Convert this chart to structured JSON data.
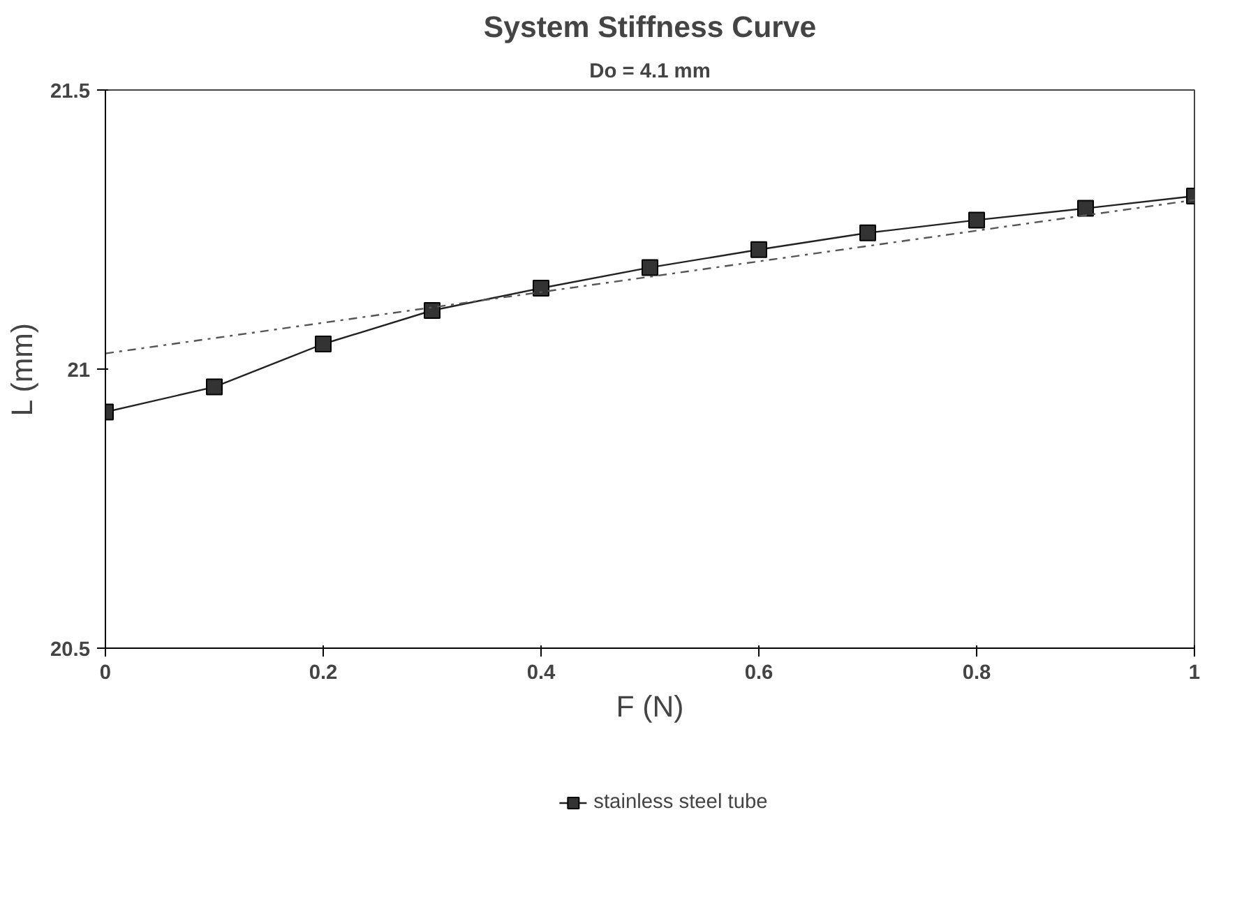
{
  "chart_data": {
    "type": "line",
    "title": "System Stiffness Curve",
    "subtitle": "Do = 4.1 mm",
    "xlabel": "F (N)",
    "ylabel": "L (mm)",
    "x": [
      0,
      0.1,
      0.2,
      0.3,
      0.4,
      0.5,
      0.6,
      0.7,
      0.8,
      0.9,
      1
    ],
    "series": [
      {
        "name": "stainless steel tube",
        "color": "#222222",
        "marker": "square",
        "line_style": "solid",
        "values": [
          20.923,
          20.968,
          21.045,
          21.105,
          21.145,
          21.182,
          21.214,
          21.244,
          21.267,
          21.288,
          21.31
        ]
      },
      {
        "color": "#555555",
        "marker": "none",
        "line_style": "dashed",
        "x": [
          0,
          1
        ],
        "values": [
          21.028,
          21.303
        ]
      }
    ],
    "xlim": [
      0,
      1
    ],
    "ylim": [
      20.5,
      21.5
    ],
    "xticks": [
      0,
      0.2,
      0.4,
      0.6,
      0.8,
      1
    ],
    "yticks": [
      20.5,
      21,
      21.5
    ],
    "grid": false,
    "legend": "bottom"
  }
}
